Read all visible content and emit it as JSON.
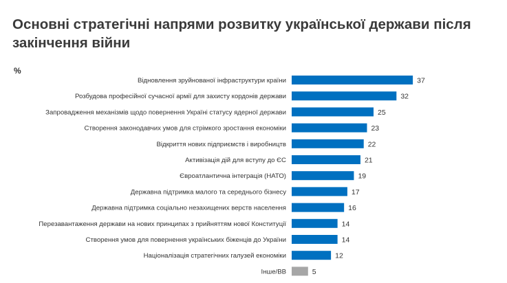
{
  "chart_data": {
    "type": "bar",
    "orientation": "horizontal",
    "title": "Основні стратегічні напрями розвитку української держави після закінчення війни",
    "unit_label": "%",
    "categories": [
      "Відновлення зруйнованої інфраструктури країни",
      "Розбудова професійної сучасної армії для захисту кордонів держави",
      "Запровадження механізмів щодо повернення Україні статусу ядерної держави",
      "Створення законодавчих умов для стрімкого зростання економіки",
      "Відкриття нових підприємств і виробництв",
      "Активізація дій для вступу до ЄС",
      "Євроатлантична інтеграція (НАТО)",
      "Державна підтримка малого та середнього бізнесу",
      "Державна підтримка соціально незахищених верств населення",
      "Перезавантаження держави на нових принципах з прийняттям нової Конституції",
      "Створення умов для повернення українських біженців до України",
      "Націоналізація стратегічних галузей економіки",
      "Інше/ВВ"
    ],
    "values": [
      37,
      32,
      25,
      23,
      22,
      21,
      19,
      17,
      16,
      14,
      14,
      12,
      5
    ],
    "colors": {
      "main": "#0070C0",
      "other": "#A6A6A6"
    },
    "grid": false,
    "data_labels": true
  }
}
